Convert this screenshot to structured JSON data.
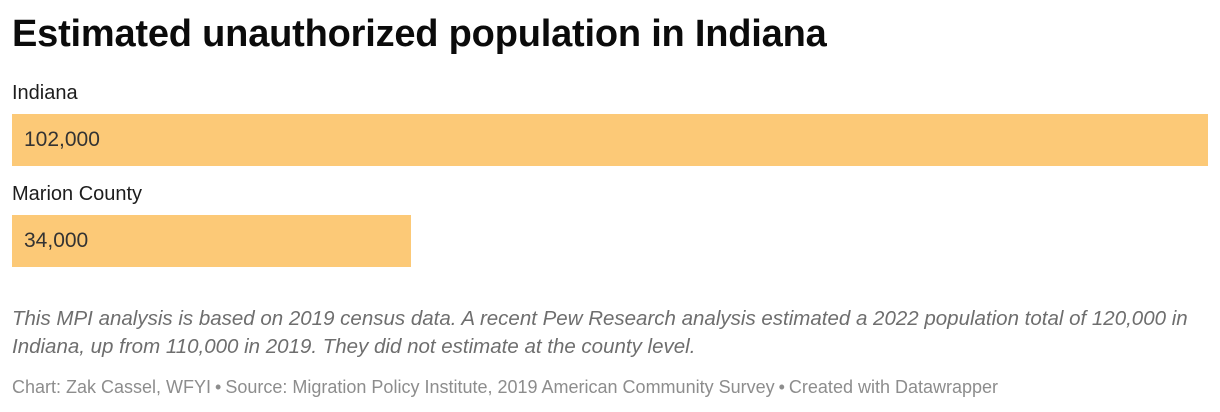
{
  "title": "Estimated unauthorized population in Indiana",
  "chart_data": {
    "type": "bar",
    "orientation": "horizontal",
    "title": "Estimated unauthorized population in Indiana",
    "categories": [
      "Indiana",
      "Marion County"
    ],
    "values": [
      102000,
      34000
    ],
    "value_labels": [
      "102,000",
      "34,000"
    ],
    "xlim": [
      0,
      102000
    ],
    "grid": false,
    "legend": false,
    "bar_color": "#fcc977"
  },
  "bars": [
    {
      "label": "Indiana",
      "value_label": "102,000",
      "width_pct": 100
    },
    {
      "label": "Marion County",
      "value_label": "34,000",
      "width_pct": 33.33
    }
  ],
  "note": "This MPI analysis is based on 2019 census data. A recent Pew Research analysis estimated a 2022 population total of 120,000 in Indiana, up from 110,000 in 2019. They did not estimate at the county level.",
  "byline": {
    "chart_credit": "Chart: Zak Cassel, WFYI",
    "separator": "•",
    "source_credit": "Source: Migration Policy Institute, 2019 American Community Survey",
    "tool_credit": "Created with Datawrapper"
  },
  "colors": {
    "bar": "#fcc977",
    "title": "#0b0b0b",
    "label": "#1d1d1d",
    "value": "#333333",
    "note": "#6e6e6e",
    "byline": "#8d8d8d"
  }
}
